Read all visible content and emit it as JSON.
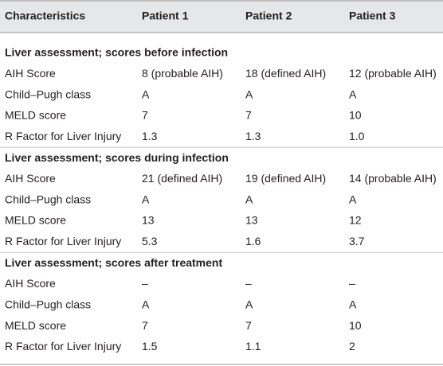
{
  "table": {
    "header": [
      "Characteristics",
      "Patient 1",
      "Patient 2",
      "Patient 3"
    ],
    "sections": [
      {
        "title": "Liver assessment; scores before infection",
        "rows": [
          [
            "AIH Score",
            "8 (probable AIH)",
            "18 (defined AIH)",
            "12 (probable AIH)"
          ],
          [
            "Child–Pugh class",
            "A",
            "A",
            "A"
          ],
          [
            "MELD score",
            "7",
            "7",
            "10"
          ],
          [
            "R Factor for Liver Injury",
            "1.3",
            "1.3",
            "1.0"
          ]
        ]
      },
      {
        "title": "Liver assessment; scores during infection",
        "rows": [
          [
            "AIH Score",
            "21 (defined AIH)",
            "19 (defined AIH)",
            "14 (probable AIH)"
          ],
          [
            "Child–Pugh class",
            "A",
            "A",
            "A"
          ],
          [
            "MELD score",
            "13",
            "13",
            "12"
          ],
          [
            "R Factor for Liver Injury",
            "5.3",
            "1.6",
            "3.7"
          ]
        ]
      },
      {
        "title": "Liver assessment; scores after treatment",
        "rows": [
          [
            "AIH Score",
            "–",
            "–",
            "–"
          ],
          [
            "Child–Pugh class",
            "A",
            "A",
            "A"
          ],
          [
            "MELD score",
            "7",
            "7",
            "10"
          ],
          [
            "R Factor for Liver Injury",
            "1.5",
            "1.1",
            "2"
          ]
        ]
      }
    ]
  }
}
